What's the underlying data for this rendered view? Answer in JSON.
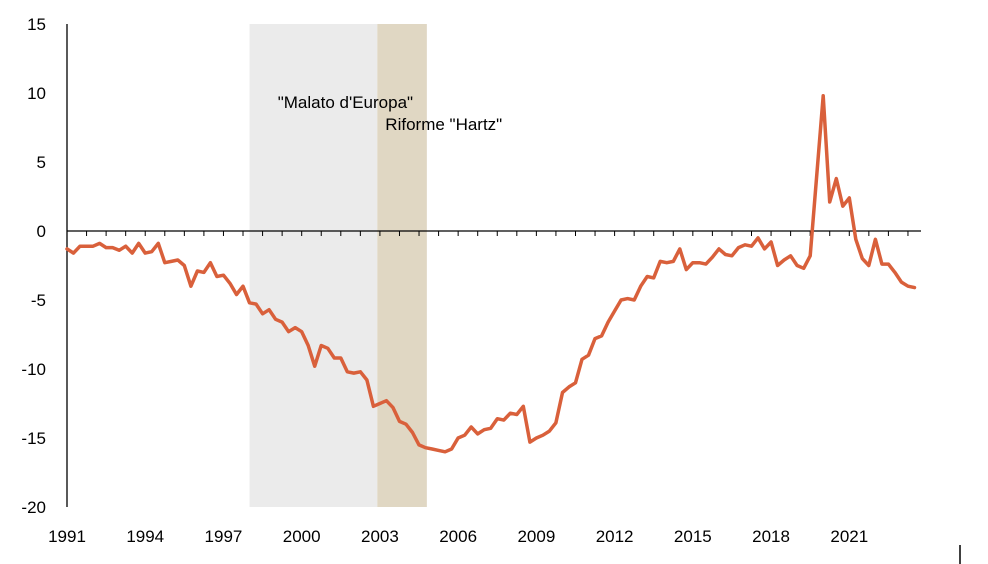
{
  "chart_data": {
    "type": "line",
    "title": "",
    "xlabel": "",
    "ylabel": "",
    "xlim": [
      1991,
      2023.75
    ],
    "ylim": [
      -20,
      15
    ],
    "yticks": [
      15,
      10,
      5,
      0,
      -5,
      -10,
      -15,
      -20
    ],
    "y_tick_labels": [
      "15",
      "10",
      "5",
      "0",
      "-5",
      "-10",
      "-15",
      "-20"
    ],
    "xticks": [
      1991,
      1994,
      1997,
      2000,
      2003,
      2006,
      2009,
      2012,
      2015,
      2018,
      2021
    ],
    "x_tick_labels": [
      "1991",
      "1994",
      "1997",
      "2000",
      "2003",
      "2006",
      "2009",
      "2012",
      "2015",
      "2018",
      "2021"
    ],
    "grid": false,
    "series_color": "#d9603b",
    "shaded_regions": [
      {
        "label": "\"Malato d'Europa\"",
        "x_start": 1998.0,
        "x_end": 2002.9,
        "color": "#ebebeb"
      },
      {
        "label": "Riforme \"Hartz\"",
        "x_start": 2002.9,
        "x_end": 2004.8,
        "color": "#e0d7c3"
      }
    ],
    "series": [
      {
        "x": [
          1991.0,
          1991.25,
          1991.5,
          1991.75,
          1992.0,
          1992.25,
          1992.5,
          1992.75,
          1993.0,
          1993.25,
          1993.5,
          1993.75,
          1994.0,
          1994.25,
          1994.5,
          1994.75,
          1995.0,
          1995.25,
          1995.5,
          1995.75,
          1996.0,
          1996.25,
          1996.5,
          1996.75,
          1997.0,
          1997.25,
          1997.5,
          1997.75,
          1998.0,
          1998.25,
          1998.5,
          1998.75,
          1999.0,
          1999.25,
          1999.5,
          1999.75,
          2000.0,
          2000.25,
          2000.5,
          2000.75,
          2001.0,
          2001.25,
          2001.5,
          2001.75,
          2002.0,
          2002.25,
          2002.5,
          2002.75,
          2003.0,
          2003.25,
          2003.5,
          2003.75,
          2004.0,
          2004.25,
          2004.5,
          2004.75,
          2005.0,
          2005.25,
          2005.5,
          2005.75,
          2006.0,
          2006.25,
          2006.5,
          2006.75,
          2007.0,
          2007.25,
          2007.5,
          2007.75,
          2008.0,
          2008.25,
          2008.5,
          2008.75,
          2009.0,
          2009.25,
          2009.5,
          2009.75,
          2010.0,
          2010.25,
          2010.5,
          2010.75,
          2011.0,
          2011.25,
          2011.5,
          2011.75,
          2012.0,
          2012.25,
          2012.5,
          2012.75,
          2013.0,
          2013.25,
          2013.5,
          2013.75,
          2014.0,
          2014.25,
          2014.5,
          2014.75,
          2015.0,
          2015.25,
          2015.5,
          2015.75,
          2016.0,
          2016.25,
          2016.5,
          2016.75,
          2017.0,
          2017.25,
          2017.5,
          2017.75,
          2018.0,
          2018.25,
          2018.5,
          2018.75,
          2019.0,
          2019.25,
          2019.5,
          2019.75,
          2020.0,
          2020.25,
          2020.5,
          2020.75,
          2021.0,
          2021.25,
          2021.5,
          2021.75,
          2022.0,
          2022.25,
          2022.5,
          2022.75,
          2023.0,
          2023.25,
          2023.5
        ],
        "values": [
          -1.3,
          -1.6,
          -1.1,
          -1.1,
          -1.1,
          -0.9,
          -1.2,
          -1.2,
          -1.4,
          -1.1,
          -1.6,
          -0.9,
          -1.6,
          -1.5,
          -0.9,
          -2.3,
          -2.2,
          -2.1,
          -2.5,
          -4.0,
          -2.9,
          -3.0,
          -2.3,
          -3.3,
          -3.2,
          -3.8,
          -4.6,
          -4.0,
          -5.2,
          -5.3,
          -6.0,
          -5.7,
          -6.4,
          -6.6,
          -7.3,
          -7.0,
          -7.3,
          -8.3,
          -9.8,
          -8.3,
          -8.5,
          -9.2,
          -9.2,
          -10.2,
          -10.3,
          -10.2,
          -10.8,
          -12.7,
          -12.5,
          -12.3,
          -12.8,
          -13.8,
          -14.0,
          -14.6,
          -15.5,
          -15.7,
          -15.8,
          -15.9,
          -16.0,
          -15.8,
          -15.0,
          -14.8,
          -14.2,
          -14.7,
          -14.4,
          -14.3,
          -13.6,
          -13.7,
          -13.2,
          -13.3,
          -12.7,
          -15.3,
          -15.0,
          -14.8,
          -14.5,
          -13.9,
          -11.7,
          -11.3,
          -11.0,
          -9.3,
          -9.0,
          -7.8,
          -7.6,
          -6.6,
          -5.8,
          -5.0,
          -4.9,
          -5.0,
          -4.0,
          -3.3,
          -3.4,
          -2.2,
          -2.3,
          -2.2,
          -1.3,
          -2.8,
          -2.3,
          -2.3,
          -2.4,
          -1.9,
          -1.3,
          -1.7,
          -1.8,
          -1.2,
          -1.0,
          -1.1,
          -0.5,
          -1.3,
          -0.8,
          -2.5,
          -2.1,
          -1.8,
          -2.5,
          -2.7,
          -1.8,
          4.0,
          9.8,
          2.1,
          3.8,
          1.8,
          2.4,
          -0.6,
          -2.0,
          -2.5,
          -0.6,
          -2.4,
          -2.4,
          -3.0,
          -3.7,
          -4.0,
          -4.1
        ]
      }
    ]
  }
}
